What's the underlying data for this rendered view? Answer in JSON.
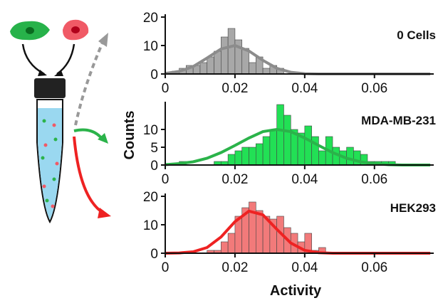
{
  "chart_data": [
    {
      "type": "histogram",
      "label": "0 Cells",
      "color": "#a8a8a8",
      "fit_color": "#8c8c8c",
      "bins": [
        0.002,
        0.004,
        0.006,
        0.008,
        0.01,
        0.012,
        0.014,
        0.016,
        0.018,
        0.02,
        0.022,
        0.024,
        0.026,
        0.028,
        0.03,
        0.032,
        0.034
      ],
      "values": [
        1,
        2,
        3,
        3,
        4,
        6,
        8,
        13,
        16,
        12,
        9,
        4,
        6,
        2,
        3,
        2
      ],
      "fit": {
        "x": [
          0,
          0.004,
          0.008,
          0.012,
          0.016,
          0.02,
          0.024,
          0.028,
          0.032,
          0.036,
          0.04,
          0.044,
          0.048,
          0.052,
          0.056,
          0.06,
          0.064,
          0.068,
          0.072,
          0.076
        ],
        "values": [
          0.2,
          0.9,
          2.6,
          5.6,
          8.8,
          10,
          8.1,
          4.8,
          2.0,
          0.6,
          0.1,
          0,
          0,
          0,
          0,
          0,
          0,
          0,
          0,
          0
        ]
      },
      "xlim": [
        0,
        0.077
      ],
      "xticks": [
        0,
        0.02,
        0.04,
        0.06
      ],
      "ylim": [
        0,
        20
      ],
      "yticks": [
        0,
        10,
        20
      ]
    },
    {
      "type": "histogram",
      "label": "MDA-MB-231",
      "ylabel": "Counts",
      "color": "#22e055",
      "fit_color": "#2bb34a",
      "bins": [
        0.002,
        0.004,
        0.006,
        0.008,
        0.01,
        0.012,
        0.014,
        0.016,
        0.018,
        0.02,
        0.022,
        0.024,
        0.026,
        0.028,
        0.03,
        0.032,
        0.034,
        0.036,
        0.038,
        0.04,
        0.042,
        0.044,
        0.046,
        0.048,
        0.05,
        0.052,
        0.054,
        0.056,
        0.058,
        0.06,
        0.062,
        0.064,
        0.066,
        0.068,
        0.07
      ],
      "values": [
        0,
        1,
        0,
        0,
        0,
        0,
        1,
        1,
        3,
        4,
        5,
        5,
        6,
        8,
        10,
        17,
        14,
        10,
        9,
        11,
        8,
        4,
        8,
        5,
        4,
        5,
        4,
        3,
        1,
        1,
        1,
        1,
        0,
        0
      ],
      "fit": {
        "x": [
          0,
          0.004,
          0.008,
          0.012,
          0.016,
          0.02,
          0.024,
          0.028,
          0.032,
          0.036,
          0.04,
          0.044,
          0.048,
          0.052,
          0.056,
          0.06,
          0.064,
          0.068,
          0.072,
          0.076
        ],
        "values": [
          0.1,
          0.4,
          0.9,
          1.9,
          3.5,
          5.5,
          7.6,
          9.4,
          10,
          9.4,
          7.6,
          5.5,
          3.5,
          1.9,
          0.9,
          0.4,
          0.1,
          0,
          0,
          0
        ]
      },
      "xlim": [
        0,
        0.077
      ],
      "xticks": [
        0,
        0.02,
        0.04,
        0.06
      ],
      "ylim": [
        0,
        17
      ],
      "yticks": [
        0,
        5,
        10
      ]
    },
    {
      "type": "histogram",
      "label": "HEK293",
      "xlabel": "Activity",
      "color": "#f27a7a",
      "fit_color": "#ee2222",
      "bins": [
        0.012,
        0.014,
        0.016,
        0.018,
        0.02,
        0.022,
        0.024,
        0.026,
        0.028,
        0.03,
        0.032,
        0.034,
        0.036,
        0.038,
        0.04,
        0.042,
        0.044,
        0.046
      ],
      "values": [
        1,
        1,
        4,
        7,
        13,
        16,
        18,
        15,
        13,
        12,
        13,
        9,
        7,
        4,
        7,
        1,
        2
      ],
      "fit": {
        "x": [
          0,
          0.004,
          0.008,
          0.012,
          0.016,
          0.02,
          0.024,
          0.028,
          0.032,
          0.036,
          0.04,
          0.044,
          0.048,
          0.052,
          0.056,
          0.06,
          0.064,
          0.068,
          0.072,
          0.076
        ],
        "values": [
          0,
          0.1,
          0.5,
          2.0,
          5.7,
          11.1,
          14.8,
          13.5,
          8.4,
          3.6,
          1.0,
          0.2,
          0,
          0,
          0,
          0,
          0,
          0,
          0,
          0
        ]
      },
      "xlim": [
        0,
        0.077
      ],
      "xticks": [
        0,
        0.02,
        0.04,
        0.06
      ],
      "ylim": [
        0,
        20
      ],
      "yticks": [
        0,
        10,
        20
      ]
    }
  ]
}
